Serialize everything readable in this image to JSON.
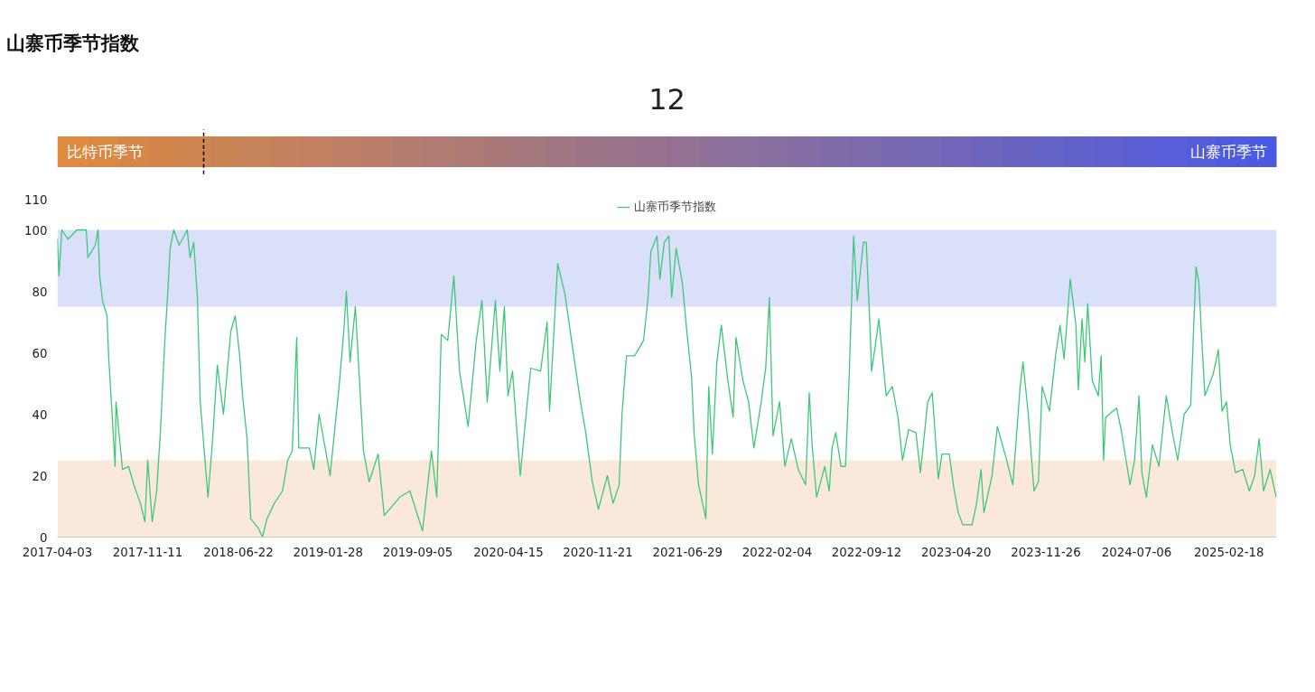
{
  "chart_data": [
    {
      "type": "other",
      "annotations": [
        "比特币季节",
        "山寨币季节"
      ],
      "values": [
        12
      ],
      "data_labels": true
    },
    {
      "type": "line",
      "title": "山寨币季节指数",
      "legend": "top",
      "x": [
        "2017-04-03",
        "2017-04-07",
        "2017-04-14",
        "2017-04-29",
        "2017-05-21",
        "2017-06-13",
        "2017-06-17",
        "2017-07-05",
        "2017-07-12",
        "2017-07-16",
        "2017-07-23",
        "2017-08-03",
        "2017-08-07",
        "2017-08-18",
        "2017-08-23",
        "2017-08-25",
        "2017-09-10",
        "2017-09-25",
        "2017-10-08",
        "2017-10-24",
        "2017-11-04",
        "2017-11-11",
        "2017-11-22",
        "2017-12-03",
        "2017-12-12",
        "2017-12-23",
        "2017-12-30",
        "2018-01-05",
        "2018-01-14",
        "2018-01-27",
        "2018-02-16",
        "2018-02-23",
        "2018-03-04",
        "2018-03-13",
        "2018-03-20",
        "2018-04-02",
        "2018-04-08",
        "2018-04-19",
        "2018-05-01",
        "2018-05-16",
        "2018-06-03",
        "2018-06-14",
        "2018-06-25",
        "2018-07-02",
        "2018-07-13",
        "2018-07-22",
        "2018-08-09",
        "2018-08-20",
        "2018-08-31",
        "2018-09-18",
        "2018-10-08",
        "2018-10-21",
        "2018-11-01",
        "2018-11-12",
        "2018-11-17",
        "2018-12-13",
        "2018-12-24",
        "2019-01-06",
        "2019-02-02",
        "2019-02-24",
        "2019-03-07",
        "2019-03-14",
        "2019-03-23",
        "2019-04-05",
        "2019-04-16",
        "2019-04-25",
        "2019-05-09",
        "2019-05-31",
        "2019-06-15",
        "2019-07-23",
        "2019-08-17",
        "2019-09-17",
        "2019-10-09",
        "2019-10-22",
        "2019-11-02",
        "2019-11-18",
        "2019-12-03",
        "2019-12-17",
        "2020-01-07",
        "2020-01-27",
        "2020-02-10",
        "2020-02-23",
        "2020-03-14",
        "2020-03-25",
        "2020-04-05",
        "2020-04-14",
        "2020-04-25",
        "2020-05-14",
        "2020-05-30",
        "2020-06-09",
        "2020-07-03",
        "2020-07-19",
        "2020-07-25",
        "2020-08-14",
        "2020-09-01",
        "2020-09-17",
        "2020-10-09",
        "2020-10-22",
        "2020-11-07",
        "2020-11-22",
        "2020-12-14",
        "2020-12-28",
        "2021-01-12",
        "2021-01-19",
        "2021-01-30",
        "2021-02-19",
        "2021-03-13",
        "2021-03-24",
        "2021-03-31",
        "2021-04-15",
        "2021-04-22",
        "2021-05-03",
        "2021-05-14",
        "2021-05-21",
        "2021-06-01",
        "2021-06-16",
        "2021-06-28",
        "2021-07-09",
        "2021-07-15",
        "2021-07-26",
        "2021-08-13",
        "2021-08-20",
        "2021-08-29",
        "2021-09-09",
        "2021-09-20",
        "2021-10-06",
        "2021-10-19",
        "2021-10-26",
        "2021-11-12",
        "2021-11-26",
        "2021-12-09",
        "2021-12-27",
        "2022-01-07",
        "2022-01-16",
        "2022-01-25",
        "2022-02-10",
        "2022-02-23",
        "2022-03-11",
        "2022-03-28",
        "2022-04-15",
        "2022-04-24",
        "2022-05-01",
        "2022-05-12",
        "2022-06-01",
        "2022-06-12",
        "2022-06-19",
        "2022-06-28",
        "2022-07-11",
        "2022-07-22",
        "2022-07-31",
        "2022-08-11",
        "2022-08-20",
        "2022-09-04",
        "2022-09-11",
        "2022-09-20",
        "2022-09-24",
        "2022-10-03",
        "2022-10-12",
        "2022-10-30",
        "2022-11-14",
        "2022-11-28",
        "2022-12-09",
        "2022-12-24",
        "2023-01-11",
        "2023-01-22",
        "2023-02-09",
        "2023-02-20",
        "2023-03-07",
        "2023-03-16",
        "2023-04-03",
        "2023-04-14",
        "2023-04-25",
        "2023-05-06",
        "2023-05-29",
        "2023-06-09",
        "2023-06-20",
        "2023-06-27",
        "2023-07-17",
        "2023-07-30",
        "2023-08-20",
        "2023-09-06",
        "2023-09-24",
        "2023-10-01",
        "2023-10-14",
        "2023-10-28",
        "2023-11-08",
        "2023-11-17",
        "2023-12-05",
        "2023-12-20",
        "2023-12-31",
        "2024-01-10",
        "2024-01-21",
        "2024-01-25",
        "2024-02-08",
        "2024-02-14",
        "2024-02-23",
        "2024-03-01",
        "2024-03-08",
        "2024-03-19",
        "2024-04-03",
        "2024-04-10",
        "2024-04-16",
        "2024-04-21",
        "2024-05-18",
        "2024-05-29",
        "2024-06-09",
        "2024-06-20",
        "2024-07-01",
        "2024-07-12",
        "2024-07-19",
        "2024-07-30",
        "2024-08-14",
        "2024-08-30",
        "2024-09-17",
        "2024-10-02",
        "2024-10-15",
        "2024-10-31",
        "2024-11-16",
        "2024-11-29",
        "2024-12-06",
        "2024-12-14",
        "2024-12-21",
        "2025-01-10",
        "2025-01-23",
        "2025-02-01",
        "2025-02-12",
        "2025-02-21",
        "2025-03-06",
        "2025-03-24",
        "2025-04-09",
        "2025-04-22",
        "2025-05-03",
        "2025-05-14",
        "2025-05-30",
        "2025-06-14"
      ],
      "series": [
        {
          "name": "山寨币季节指数",
          "color": "#3cc878",
          "values": [
            97,
            85,
            100,
            97,
            100,
            100,
            91,
            95,
            100,
            85,
            77,
            72,
            59,
            34,
            23,
            44,
            22,
            23,
            17,
            11,
            5,
            25,
            5,
            15,
            34,
            64,
            79,
            94,
            100,
            95,
            100,
            91,
            96,
            78,
            44,
            23,
            13,
            31,
            56,
            40,
            67,
            72,
            59,
            46,
            32,
            6,
            3,
            0,
            6,
            11,
            15,
            25,
            28,
            65,
            29,
            29,
            22,
            40,
            20,
            49,
            66,
            80,
            57,
            75,
            49,
            28,
            18,
            27,
            7,
            13,
            15,
            2,
            28,
            13,
            66,
            64,
            85,
            54,
            36,
            64,
            77,
            44,
            77,
            54,
            75,
            46,
            54,
            20,
            42,
            55,
            54,
            70,
            41,
            89,
            79,
            64,
            44,
            34,
            18,
            9,
            20,
            11,
            17,
            40,
            59,
            59,
            64,
            78,
            93,
            98,
            84,
            96,
            98,
            78,
            94,
            83,
            66,
            52,
            34,
            17,
            6,
            49,
            27,
            57,
            69,
            51,
            39,
            65,
            51,
            44,
            29,
            44,
            55,
            78,
            33,
            44,
            23,
            32,
            22,
            17,
            47,
            30,
            13,
            23,
            15,
            29,
            34,
            23,
            23,
            52,
            98,
            77,
            96,
            96,
            69,
            54,
            62,
            71,
            46,
            49,
            39,
            25,
            35,
            34,
            21,
            44,
            47,
            19,
            27,
            27,
            16,
            8,
            4,
            4,
            11,
            22,
            8,
            20,
            36,
            26,
            17,
            49,
            57,
            40,
            15,
            18,
            49,
            41,
            59,
            69,
            58,
            77,
            84,
            69,
            48,
            71,
            57,
            76,
            51,
            46,
            59,
            25,
            39,
            42,
            35,
            26,
            17,
            25,
            46,
            21,
            13,
            30,
            23,
            46,
            34,
            25,
            40,
            43,
            88,
            83,
            62,
            46,
            53,
            61,
            41,
            44,
            30,
            21,
            22,
            15,
            20,
            32,
            15,
            22,
            13
          ]
        }
      ],
      "xlim": [
        "2017-04-03",
        "2025-06-15"
      ],
      "xticks": [
        "2017-04-03",
        "2017-11-11",
        "2018-06-22",
        "2019-01-28",
        "2019-09-05",
        "2020-04-15",
        "2020-11-21",
        "2021-06-29",
        "2022-02-04",
        "2022-09-12",
        "2023-04-20",
        "2023-11-26",
        "2024-07-06",
        "2025-02-18"
      ],
      "ylim": [
        0,
        110
      ],
      "yticks": [
        0,
        20,
        40,
        60,
        80,
        100,
        110
      ],
      "bands": [
        {
          "axis": "y",
          "from": 75,
          "to": 100,
          "color": "#dbe0fa"
        },
        {
          "axis": "y",
          "from": 0,
          "to": 25,
          "color": "#fae9db"
        }
      ]
    }
  ]
}
